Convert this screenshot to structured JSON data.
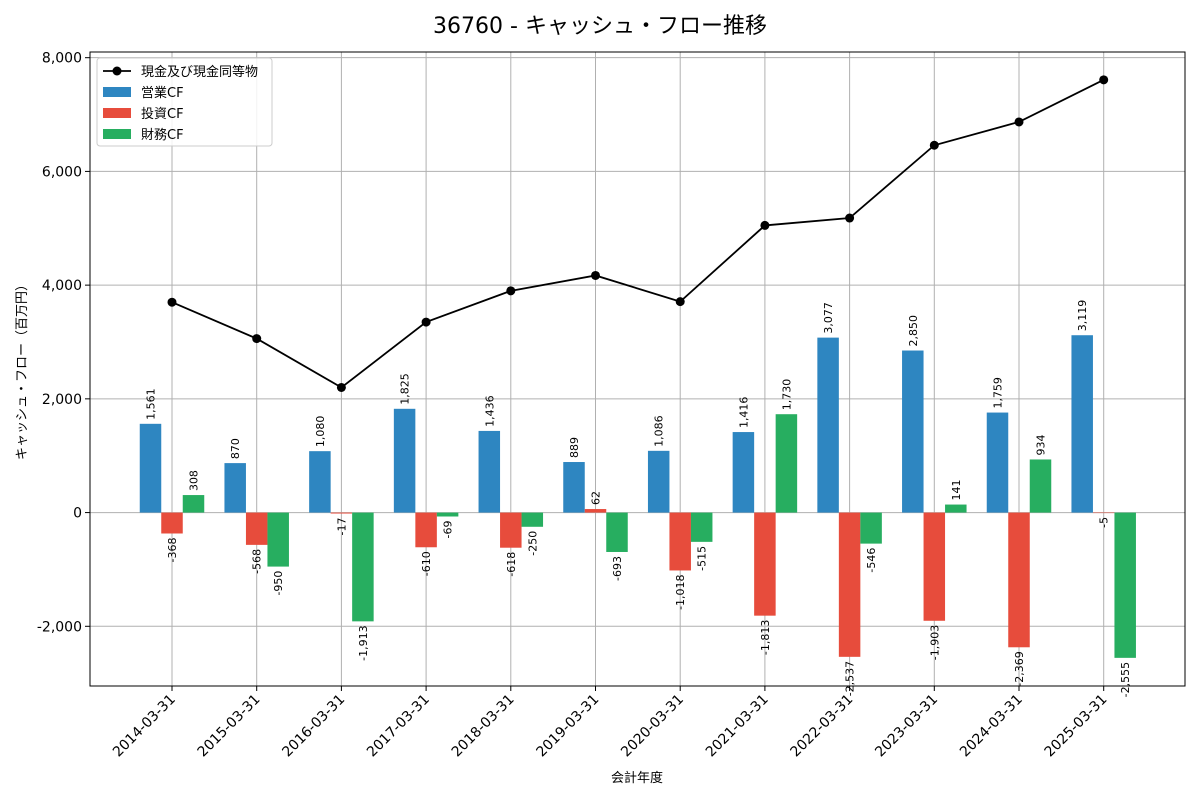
{
  "chart_data": {
    "type": "bar",
    "title": "36760 - キャッシュ・フロー推移",
    "xlabel": "会計年度",
    "ylabel": "キャッシュ・フロー（百万円）",
    "ylim": [
      -3050,
      8100
    ],
    "yticks": [
      -2000,
      0,
      2000,
      4000,
      6000,
      8000
    ],
    "ytick_labels": [
      "-2,000",
      "0",
      "2,000",
      "4,000",
      "6,000",
      "8,000"
    ],
    "grid": true,
    "legend_position": "top-left",
    "categories": [
      "2014-03-31",
      "2015-03-31",
      "2016-03-31",
      "2017-03-31",
      "2018-03-31",
      "2019-03-31",
      "2020-03-31",
      "2021-03-31",
      "2022-03-31",
      "2023-03-31",
      "2024-03-31",
      "2025-03-31"
    ],
    "series": [
      {
        "name": "営業CF",
        "kind": "bar",
        "color": "#2e86c1",
        "values": [
          1561,
          870,
          1080,
          1825,
          1436,
          889,
          1086,
          1416,
          3077,
          2850,
          1759,
          3119
        ],
        "labels": [
          "1,561",
          "870",
          "1,080",
          "1,825",
          "1,436",
          "889",
          "1,086",
          "1,416",
          "3,077",
          "2,850",
          "1,759",
          "3,119"
        ]
      },
      {
        "name": "投資CF",
        "kind": "bar",
        "color": "#e74c3c",
        "values": [
          -368,
          -568,
          -17,
          -610,
          -618,
          62,
          -1018,
          -1813,
          -2537,
          -1903,
          -2369,
          -5
        ],
        "labels": [
          "-368",
          "-568",
          "-17",
          "-610",
          "-618",
          "62",
          "-1,018",
          "-1,813",
          "-2,537",
          "-1,903",
          "-2,369",
          "-5"
        ]
      },
      {
        "name": "財務CF",
        "kind": "bar",
        "color": "#27ae60",
        "values": [
          308,
          -950,
          -1913,
          -69,
          -250,
          -693,
          -515,
          1730,
          -546,
          141,
          934,
          -2555
        ],
        "labels": [
          "308",
          "-950",
          "-1,913",
          "-69",
          "-250",
          "-693",
          "-515",
          "1,730",
          "-546",
          "141",
          "934",
          "-2,555"
        ]
      },
      {
        "name": "現金及び現金同等物",
        "kind": "line",
        "color": "#000000",
        "values": [
          3700,
          3060,
          2200,
          3350,
          3900,
          4170,
          3710,
          5050,
          5180,
          6460,
          6870,
          7610
        ]
      }
    ]
  }
}
